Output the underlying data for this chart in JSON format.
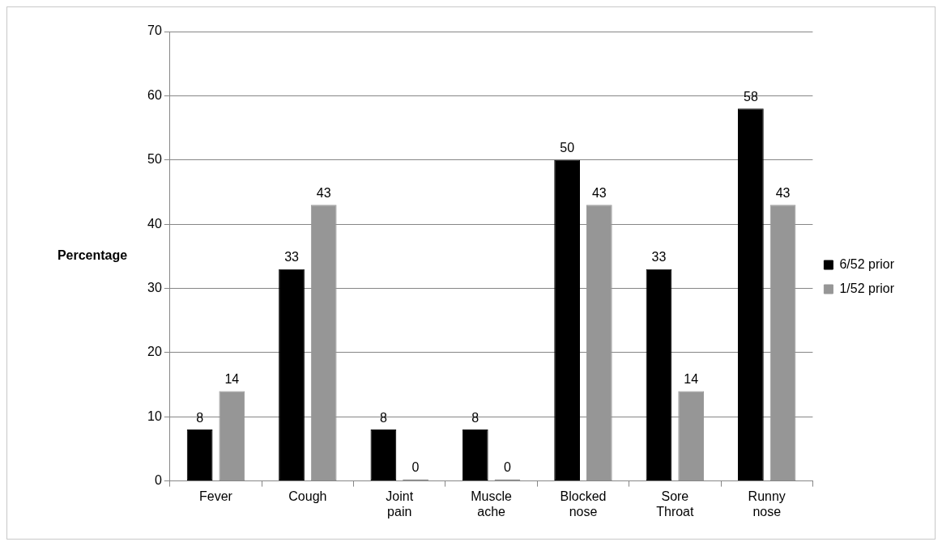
{
  "chart_data": {
    "type": "bar",
    "ylabel": "Percentage",
    "categories": [
      "Fever",
      "Cough",
      "Joint pain",
      "Muscle ache",
      "Blocked nose",
      "Sore Throat",
      "Runny nose"
    ],
    "series": [
      {
        "name": "6/52 prior",
        "color": "#000000",
        "values": [
          8,
          33,
          8,
          8,
          50,
          33,
          58
        ]
      },
      {
        "name": "1/52 prior",
        "color": "#969696",
        "values": [
          14,
          43,
          0,
          0,
          43,
          14,
          43
        ]
      }
    ],
    "ylim": [
      0,
      70
    ],
    "yticks": [
      0,
      10,
      20,
      30,
      40,
      50,
      60,
      70
    ],
    "grid": "y",
    "legend": "right",
    "data_labels": true
  }
}
